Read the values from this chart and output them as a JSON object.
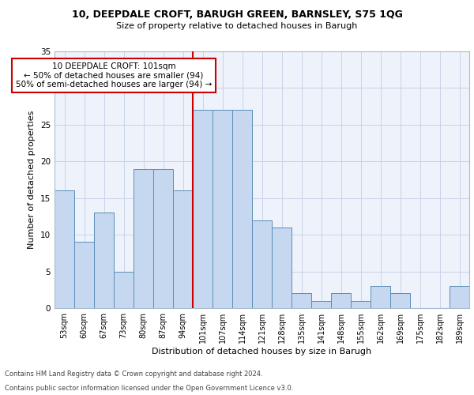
{
  "title1": "10, DEEPDALE CROFT, BARUGH GREEN, BARNSLEY, S75 1QG",
  "title2": "Size of property relative to detached houses in Barugh",
  "xlabel": "Distribution of detached houses by size in Barugh",
  "ylabel": "Number of detached properties",
  "categories": [
    "53sqm",
    "60sqm",
    "67sqm",
    "73sqm",
    "80sqm",
    "87sqm",
    "94sqm",
    "101sqm",
    "107sqm",
    "114sqm",
    "121sqm",
    "128sqm",
    "135sqm",
    "141sqm",
    "148sqm",
    "155sqm",
    "162sqm",
    "169sqm",
    "175sqm",
    "182sqm",
    "189sqm"
  ],
  "values": [
    16,
    9,
    13,
    5,
    19,
    19,
    16,
    27,
    27,
    27,
    12,
    11,
    2,
    1,
    2,
    1,
    3,
    2,
    0,
    0,
    3
  ],
  "bar_color": "#c5d8f0",
  "bar_edge_color": "#5b8db8",
  "highlight_index": 7,
  "vline_color": "#cc0000",
  "ylim": [
    0,
    35
  ],
  "yticks": [
    0,
    5,
    10,
    15,
    20,
    25,
    30,
    35
  ],
  "annotation_text": "10 DEEPDALE CROFT: 101sqm\n← 50% of detached houses are smaller (94)\n50% of semi-detached houses are larger (94) →",
  "annotation_box_color": "#ffffff",
  "annotation_border_color": "#cc0000",
  "bg_color": "#eef2fa",
  "grid_color": "#c8d4e8",
  "footer1": "Contains HM Land Registry data © Crown copyright and database right 2024.",
  "footer2": "Contains public sector information licensed under the Open Government Licence v3.0."
}
